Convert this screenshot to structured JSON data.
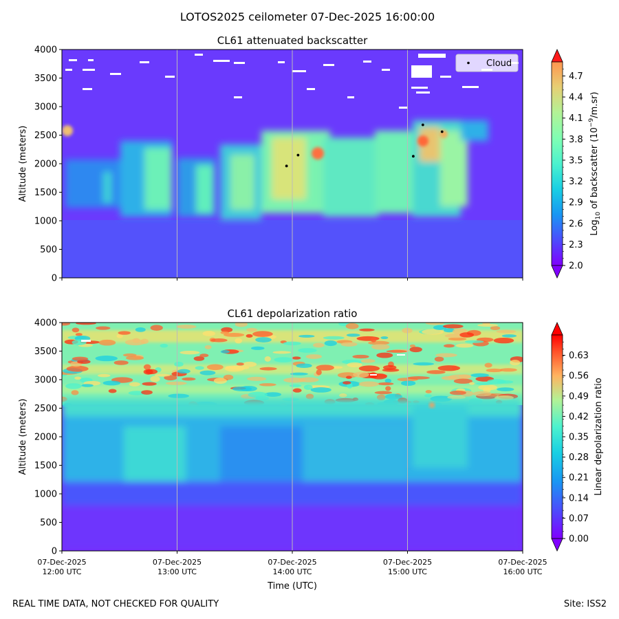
{
  "figure": {
    "title": "LOTOS2025 ceilometer 07-Dec-2025 16:00:00",
    "footer_left": "REAL TIME DATA, NOT CHECKED FOR QUALITY",
    "footer_right": "Site: ISS2"
  },
  "chart_data": [
    {
      "type": "heatmap",
      "title": "CL61 attenuated backscatter",
      "xlabel": "",
      "ylabel": "Altitude (meters)",
      "ylim": [
        0,
        4000
      ],
      "yticks": [
        "0",
        "500",
        "1000",
        "1500",
        "2000",
        "2500",
        "3000",
        "3500",
        "4000"
      ],
      "xlim_hours_utc": [
        12,
        16
      ],
      "grid": "vertical lines at hourly ticks",
      "colormap": "rainbow",
      "colorbar": {
        "label_prefix": "Log",
        "label_sub": "10",
        "label_mid": " of backscatter (10",
        "label_sup": "−9",
        "label_suffix": "/m.sr)",
        "range": [
          2.0,
          4.9
        ],
        "ticks": [
          "2.0",
          "2.3",
          "2.6",
          "2.9",
          "3.2",
          "3.5",
          "3.8",
          "4.1",
          "4.4",
          "4.7"
        ],
        "extend": "both"
      },
      "legend": {
        "placement": "top-right",
        "entries": [
          "Cloud"
        ]
      },
      "cloud_points": [
        {
          "x": "13:57",
          "y": 1960
        },
        {
          "x": "14:03",
          "y": 2150
        },
        {
          "x": "15:03",
          "y": 2130
        },
        {
          "x": "15:08",
          "y": 2680
        },
        {
          "x": "15:18",
          "y": 2560
        }
      ],
      "features": {
        "background_level": 2.2,
        "low_layer_top_m": 1000,
        "aerosol_layer_m": [
          1100,
          2700
        ],
        "aerosol_layer_peak_level": 3.8,
        "noise_top_m": [
          3000,
          4000
        ]
      }
    },
    {
      "type": "heatmap",
      "title": "CL61 depolarization ratio",
      "xlabel": "Time (UTC)",
      "ylabel": "Altitude (meters)",
      "ylim": [
        0,
        4000
      ],
      "yticks": [
        "0",
        "500",
        "1000",
        "1500",
        "2000",
        "2500",
        "3000",
        "3500",
        "4000"
      ],
      "xticks": [
        {
          "date": "07-Dec-2025",
          "time": "12:00 UTC"
        },
        {
          "date": "07-Dec-2025",
          "time": "13:00 UTC"
        },
        {
          "date": "07-Dec-2025",
          "time": "14:00 UTC"
        },
        {
          "date": "07-Dec-2025",
          "time": "15:00 UTC"
        },
        {
          "date": "07-Dec-2025",
          "time": "16:00 UTC"
        }
      ],
      "grid": "vertical lines at hourly ticks",
      "colormap": "rainbow",
      "colorbar": {
        "label": "Linear depolarization ratio",
        "range": [
          0.0,
          0.7
        ],
        "ticks": [
          "0.00",
          "0.07",
          "0.14",
          "0.21",
          "0.28",
          "0.35",
          "0.42",
          "0.49",
          "0.56",
          "0.63"
        ],
        "extend": "both"
      },
      "features": {
        "surface_layer_m": [
          0,
          800
        ],
        "surface_layer_value": 0.02,
        "aerosol_layer_m": [
          900,
          2600
        ],
        "aerosol_layer_value": 0.28,
        "noise_top_m": [
          2600,
          4000
        ],
        "noise_top_value": 0.45
      }
    }
  ]
}
